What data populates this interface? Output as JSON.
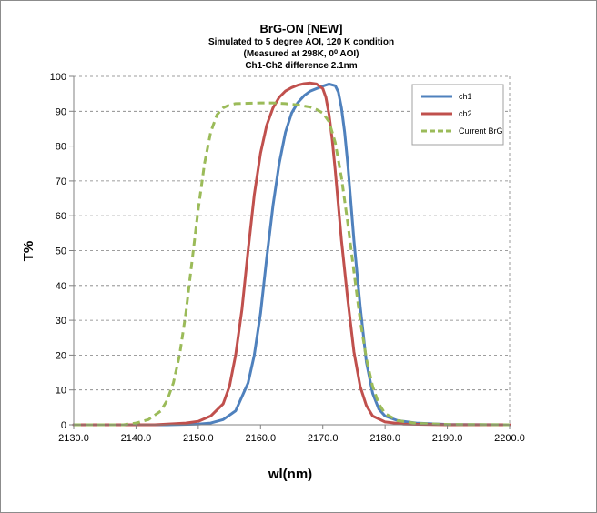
{
  "chart_data": {
    "type": "line",
    "title": "BrG-ON [NEW]",
    "subtitle_lines": [
      "Simulated to 5 degree AOI, 120 K condition",
      "(Measured at 298K, 0⁰ AOI)",
      "Ch1-Ch2 difference 2.1nm"
    ],
    "xlabel": "wl(nm)",
    "ylabel": "T%",
    "xlim": [
      2130,
      2200
    ],
    "ylim": [
      0,
      100
    ],
    "x_ticks": [
      "2130.0",
      "2140.0",
      "2150.0",
      "2160.0",
      "2170.0",
      "2180.0",
      "2190.0",
      "2200.0"
    ],
    "y_ticks": [
      "0",
      "10",
      "20",
      "30",
      "40",
      "50",
      "60",
      "70",
      "80",
      "90",
      "100"
    ],
    "grid": "horizontal-dashed",
    "legend_position": "top-right",
    "series": [
      {
        "name": "ch1",
        "color": "#4f81bd",
        "dash": "solid",
        "x": [
          2130,
          2145,
          2150,
          2152,
          2154,
          2156,
          2158,
          2159,
          2160,
          2161,
          2162,
          2163,
          2164,
          2165,
          2166,
          2167,
          2168,
          2169,
          2170,
          2171,
          2172,
          2172.5,
          2173,
          2173.5,
          2174,
          2174.5,
          2175,
          2176,
          2177,
          2178,
          2179,
          2180,
          2182,
          2185,
          2190,
          2200
        ],
        "y": [
          0,
          0,
          0.2,
          0.5,
          1.5,
          4,
          12,
          20,
          32,
          48,
          63,
          75,
          84,
          89.5,
          92.5,
          94.5,
          95.8,
          96.5,
          97.2,
          97.8,
          97.3,
          95.5,
          91,
          84,
          75,
          64,
          53,
          34,
          18,
          9,
          4.5,
          2.5,
          1.2,
          0.5,
          0.1,
          0
        ]
      },
      {
        "name": "ch2",
        "color": "#c0504d",
        "dash": "solid",
        "x": [
          2130,
          2143,
          2148,
          2150,
          2152,
          2154,
          2155,
          2156,
          2157,
          2158,
          2159,
          2160,
          2161,
          2162,
          2163,
          2164,
          2165,
          2166,
          2167,
          2168,
          2169,
          2170,
          2170.5,
          2171,
          2171.5,
          2172,
          2172.5,
          2173,
          2174,
          2175,
          2176,
          2177,
          2178,
          2180,
          2183,
          2190,
          2200
        ],
        "y": [
          0,
          0,
          0.5,
          1,
          2.5,
          6,
          11,
          20,
          33,
          50,
          66,
          78,
          86,
          91,
          94,
          95.8,
          96.8,
          97.5,
          97.9,
          98.1,
          97.8,
          96.5,
          94,
          89,
          82,
          73,
          63,
          53,
          36,
          21,
          11,
          5.5,
          2.5,
          0.8,
          0.2,
          0,
          0
        ]
      },
      {
        "name": "Current BrG",
        "color": "#9bbb59",
        "dash": "dashed",
        "x": [
          2130,
          2138,
          2140,
          2142,
          2144,
          2145,
          2146,
          2147,
          2148,
          2149,
          2150,
          2151,
          2152,
          2153,
          2154,
          2155,
          2156,
          2158,
          2160,
          2162,
          2164,
          2166,
          2168,
          2169,
          2170,
          2171,
          2172,
          2173,
          2174,
          2175,
          2176,
          2177,
          2178,
          2179,
          2180,
          2182,
          2185,
          2190,
          2200
        ],
        "y": [
          0,
          0,
          0.5,
          1.5,
          4,
          7,
          12,
          20,
          32,
          47,
          62,
          75,
          84,
          89,
          91,
          91.8,
          92.2,
          92.3,
          92.4,
          92.4,
          92.2,
          91.8,
          91.2,
          90.5,
          89.5,
          87,
          81,
          71,
          58,
          44,
          30,
          19,
          11,
          6,
          3.2,
          1.2,
          0.4,
          0.1,
          0
        ]
      }
    ]
  }
}
